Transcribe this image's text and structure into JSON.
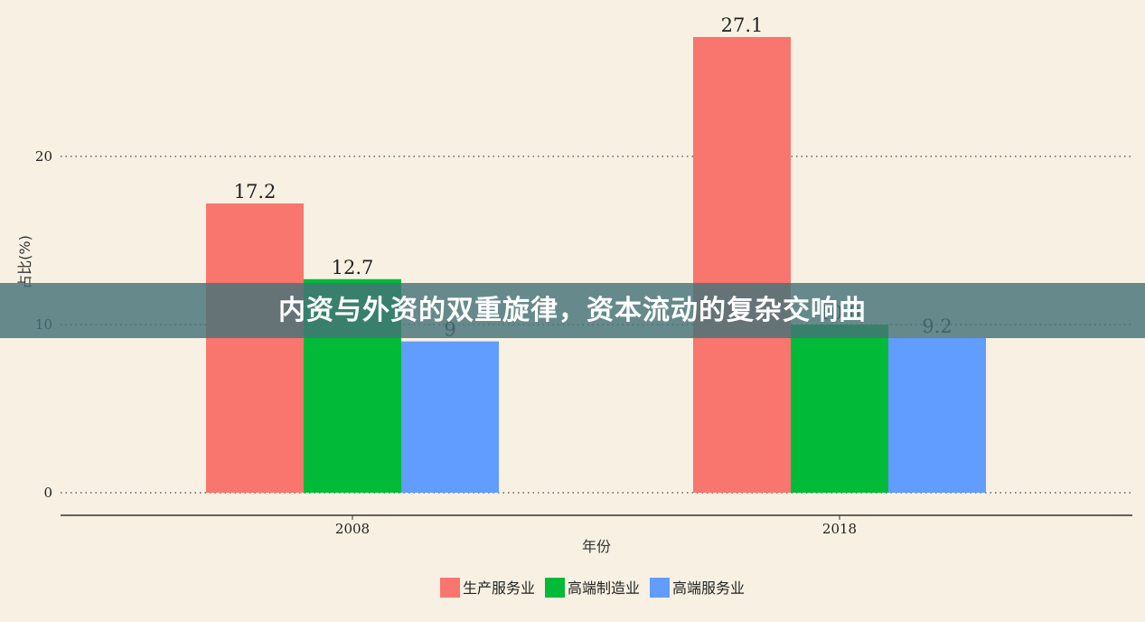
{
  "chart_data": {
    "type": "bar",
    "title": "内资与外资的双重旋律，资本流动的复杂交响曲",
    "xlabel": "年份",
    "ylabel": "占比(%)",
    "categories": [
      "2008",
      "2018"
    ],
    "series": [
      {
        "name": "生产服务业",
        "values": [
          17.2,
          27.1
        ],
        "color": "#f8766d"
      },
      {
        "name": "高端制造业",
        "values": [
          12.7,
          10.0
        ],
        "color": "#00ba38"
      },
      {
        "name": "高端服务业",
        "values": [
          9.0,
          9.2
        ],
        "color": "#619cff"
      }
    ],
    "data_labels": [
      [
        "17.2",
        "27.1"
      ],
      [
        "12.7",
        "10.0"
      ],
      [
        "9",
        "9.2"
      ]
    ],
    "yticks": [
      0,
      10,
      20
    ],
    "ylim": [
      -1.5,
      28.5
    ],
    "grid": "horizontal dotted",
    "legend_position": "bottom"
  }
}
